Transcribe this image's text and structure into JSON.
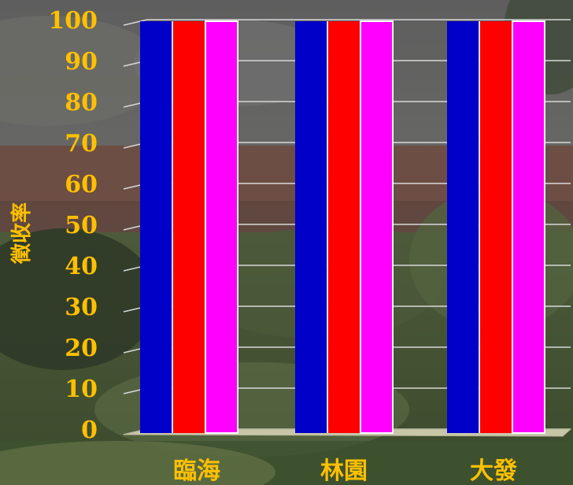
{
  "chart_data": {
    "type": "bar",
    "categories": [
      "臨海",
      "林園",
      "大發"
    ],
    "series": [
      {
        "values": [
          100,
          100,
          100
        ],
        "color": "#0000c8"
      },
      {
        "values": [
          100,
          100,
          100
        ],
        "color": "#ff0000"
      },
      {
        "values": [
          100,
          100,
          100
        ],
        "color": "#ff00ff"
      }
    ],
    "ylabel": "徵收率",
    "ylim": [
      0,
      100
    ],
    "yticks": [
      0,
      10,
      20,
      30,
      40,
      50,
      60,
      70,
      80,
      90,
      100
    ],
    "grid": true,
    "legend": "none",
    "text_color": "#ffc000",
    "projection": "3d"
  }
}
